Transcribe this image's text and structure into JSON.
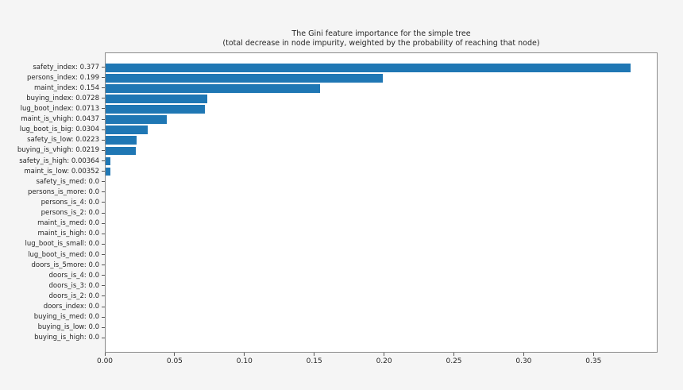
{
  "title": {
    "line1": "The Gini feature importance for the simple tree",
    "line2": "(total decrease in node impurity, weighted by the probability of reaching that node)"
  },
  "chart_data": {
    "type": "bar",
    "orientation": "horizontal",
    "title": "The Gini feature importance for the simple tree",
    "subtitle": "(total decrease in node impurity, weighted by the probability of reaching that node)",
    "categories": [
      "safety_index",
      "persons_index",
      "maint_index",
      "buying_index",
      "lug_boot_index",
      "maint_is_vhigh",
      "lug_boot_is_big",
      "safety_is_low",
      "buying_is_vhigh",
      "safety_is_high",
      "maint_is_low",
      "safety_is_med",
      "persons_is_more",
      "persons_is_4",
      "persons_is_2",
      "maint_is_med",
      "maint_is_high",
      "lug_boot_is_small",
      "lug_boot_is_med",
      "doors_is_5more",
      "doors_is_4",
      "doors_is_3",
      "doors_is_2",
      "doors_index",
      "buying_is_med",
      "buying_is_low",
      "buying_is_high"
    ],
    "values": [
      0.377,
      0.199,
      0.154,
      0.0728,
      0.0713,
      0.0437,
      0.0304,
      0.0223,
      0.0219,
      0.00364,
      0.00352,
      0.0,
      0.0,
      0.0,
      0.0,
      0.0,
      0.0,
      0.0,
      0.0,
      0.0,
      0.0,
      0.0,
      0.0,
      0.0,
      0.0,
      0.0,
      0.0
    ],
    "y_tick_labels": [
      "safety_index: 0.377",
      "persons_index: 0.199",
      "maint_index: 0.154",
      "buying_index: 0.0728",
      "lug_boot_index: 0.0713",
      "maint_is_vhigh: 0.0437",
      "lug_boot_is_big: 0.0304",
      "safety_is_low: 0.0223",
      "buying_is_vhigh: 0.0219",
      "safety_is_high: 0.00364",
      "maint_is_low: 0.00352",
      "safety_is_med: 0.0",
      "persons_is_more: 0.0",
      "persons_is_4: 0.0",
      "persons_is_2: 0.0",
      "maint_is_med: 0.0",
      "maint_is_high: 0.0",
      "lug_boot_is_small: 0.0",
      "lug_boot_is_med: 0.0",
      "doors_is_5more: 0.0",
      "doors_is_4: 0.0",
      "doors_is_3: 0.0",
      "doors_is_2: 0.0",
      "doors_index: 0.0",
      "buying_is_med: 0.0",
      "buying_is_low: 0.0",
      "buying_is_high: 0.0"
    ],
    "x_tick_labels": [
      "0.00",
      "0.05",
      "0.10",
      "0.15",
      "0.20",
      "0.25",
      "0.30",
      "0.35"
    ],
    "x_tick_values": [
      0.0,
      0.05,
      0.1,
      0.15,
      0.2,
      0.25,
      0.3,
      0.35
    ],
    "xlim": [
      0,
      0.3959
    ],
    "xlabel": "",
    "ylabel": "",
    "grid": false,
    "legend": null,
    "bar_color": "#1f77b4",
    "plot_bg": "#ffffff",
    "fig_bg": "#f5f5f5"
  }
}
